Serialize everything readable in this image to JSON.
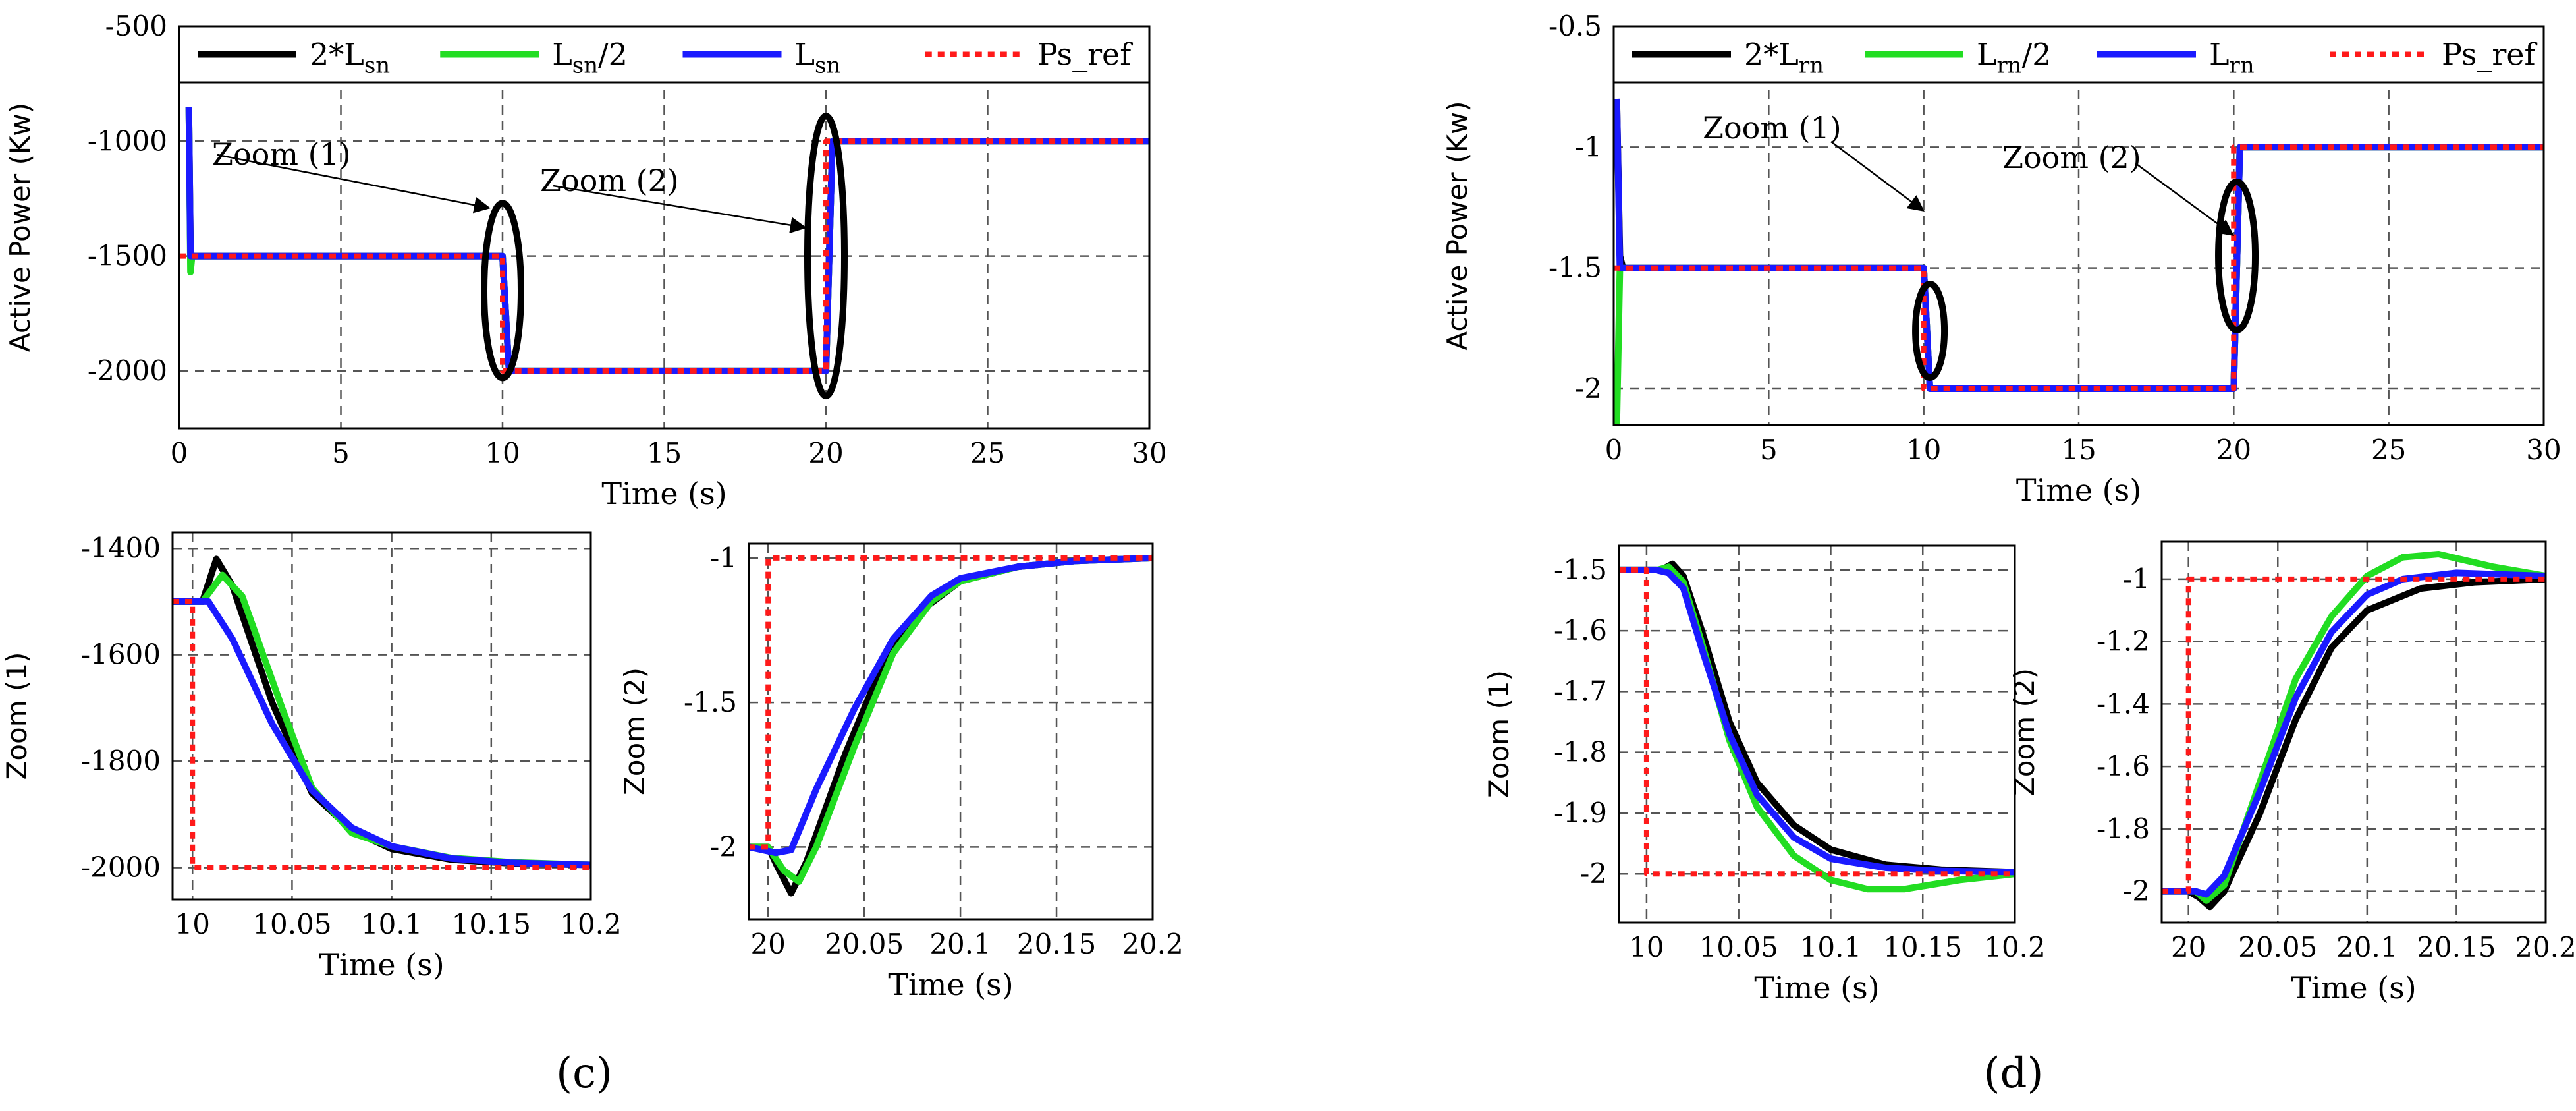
{
  "figure": {
    "panel_c_label": "(c)",
    "panel_d_label": "(d)"
  },
  "colors": {
    "series_2x": "#000000",
    "series_half": "#22dd22",
    "series_nominal": "#1a1aff",
    "reference": "#ff1a1a",
    "grid": "#555555"
  },
  "chart_data": [
    {
      "id": "c_main",
      "type": "line",
      "xlabel": "Time (s)",
      "ylabel": "Active Power (Kw)",
      "xlim": [
        0,
        30
      ],
      "ylim": [
        -2250,
        -500
      ],
      "xticks": [
        0,
        5,
        10,
        15,
        20,
        25,
        30
      ],
      "xtick_labels": [
        "0",
        "5",
        "10",
        "15",
        "20",
        "25",
        "30"
      ],
      "yticks": [
        -500,
        -1000,
        -1500,
        -2000
      ],
      "ytick_labels": [
        "-500",
        "-1000",
        "-1500",
        "-2000"
      ],
      "legend": [
        {
          "base": "2*L",
          "sub": "sn",
          "tail": ""
        },
        {
          "base": "L",
          "sub": "sn",
          "tail": "/2"
        },
        {
          "base": "L",
          "sub": "sn",
          "tail": ""
        },
        {
          "base": "Ps_ref",
          "sub": "",
          "tail": ""
        }
      ],
      "annotations": [
        "Zoom (1)",
        "Zoom (2)"
      ],
      "series": [
        {
          "name": "2*Lsn",
          "x": [
            0.3,
            0.35,
            0.4,
            10,
            10.2,
            20,
            20.2,
            30
          ],
          "y": [
            -850,
            -1480,
            -1500,
            -1500,
            -2000,
            -2000,
            -1000,
            -1000
          ]
        },
        {
          "name": "Lsn/2",
          "x": [
            0.3,
            0.35,
            0.4,
            10,
            10.2,
            20,
            20.2,
            30
          ],
          "y": [
            -850,
            -1570,
            -1500,
            -1500,
            -2000,
            -2000,
            -1000,
            -1000
          ]
        },
        {
          "name": "Lsn",
          "x": [
            0.3,
            0.35,
            0.4,
            10,
            10.2,
            20,
            20.2,
            30
          ],
          "y": [
            -850,
            -1500,
            -1500,
            -1500,
            -2000,
            -2000,
            -1000,
            -1000
          ]
        },
        {
          "name": "Ps_ref",
          "x": [
            0,
            10,
            10,
            20,
            20,
            30
          ],
          "y": [
            -1500,
            -1500,
            -2000,
            -2000,
            -1000,
            -1000
          ]
        }
      ]
    },
    {
      "id": "d_main",
      "type": "line",
      "xlabel": "Time (s)",
      "ylabel": "Active Power (Kw)",
      "xlim": [
        0,
        30
      ],
      "ylim": [
        -2.15,
        -0.5
      ],
      "xticks": [
        0,
        5,
        10,
        15,
        20,
        25,
        30
      ],
      "xtick_labels": [
        "0",
        "5",
        "10",
        "15",
        "20",
        "25",
        "30"
      ],
      "yticks": [
        -0.5,
        -1,
        -1.5,
        -2
      ],
      "ytick_labels": [
        "-0.5",
        "-1",
        "-1.5",
        "-2"
      ],
      "legend": [
        {
          "base": "2*L",
          "sub": "rn",
          "tail": ""
        },
        {
          "base": "L",
          "sub": "rn",
          "tail": "/2"
        },
        {
          "base": "L",
          "sub": "rn",
          "tail": ""
        },
        {
          "base": "Ps_ref",
          "sub": "",
          "tail": ""
        }
      ],
      "annotations": [
        "Zoom (1)",
        "Zoom (2)"
      ],
      "series": [
        {
          "name": "2*Lrn",
          "x": [
            0.1,
            0.2,
            0.3,
            10,
            10.2,
            20,
            20.2,
            30
          ],
          "y": [
            -0.8,
            -1.45,
            -1.5,
            -1.5,
            -2,
            -2,
            -1,
            -1
          ]
        },
        {
          "name": "Lrn/2",
          "x": [
            0.1,
            0.2,
            0.3,
            10,
            10.2,
            20,
            20.2,
            30
          ],
          "y": [
            -2.15,
            -1.5,
            -1.5,
            -1.5,
            -2,
            -2,
            -1,
            -1
          ]
        },
        {
          "name": "Lrn",
          "x": [
            0.1,
            0.2,
            0.3,
            10,
            10.2,
            20,
            20.2,
            30
          ],
          "y": [
            -0.8,
            -1.5,
            -1.5,
            -1.5,
            -2,
            -2,
            -1,
            -1
          ]
        },
        {
          "name": "Ps_ref",
          "x": [
            0,
            10,
            10,
            20,
            20,
            30
          ],
          "y": [
            -1.5,
            -1.5,
            -2,
            -2,
            -1,
            -1
          ]
        }
      ]
    },
    {
      "id": "c_zoom1",
      "type": "line",
      "xlabel": "Time (s)",
      "ylabel": "Zoom (1)",
      "xlim": [
        9.99,
        10.2
      ],
      "ylim": [
        -2060,
        -1370
      ],
      "xticks": [
        10,
        10.05,
        10.1,
        10.15,
        10.2
      ],
      "xtick_labels": [
        "10",
        "10.05",
        "10.1",
        "10.15",
        "10.2"
      ],
      "yticks": [
        -1400,
        -1600,
        -1800,
        -2000
      ],
      "ytick_labels": [
        "-1400",
        "-1600",
        "-1800",
        "-2000"
      ],
      "series": [
        {
          "name": "2*Lsn",
          "x": [
            9.99,
            10.005,
            10.012,
            10.02,
            10.04,
            10.06,
            10.08,
            10.1,
            10.13,
            10.16,
            10.2
          ],
          "y": [
            -1500,
            -1500,
            -1420,
            -1470,
            -1690,
            -1860,
            -1930,
            -1965,
            -1985,
            -1992,
            -1995
          ]
        },
        {
          "name": "Lsn/2",
          "x": [
            9.99,
            10.005,
            10.015,
            10.025,
            10.045,
            10.06,
            10.08,
            10.1,
            10.13,
            10.16,
            10.2
          ],
          "y": [
            -1500,
            -1500,
            -1450,
            -1490,
            -1700,
            -1850,
            -1935,
            -1960,
            -1982,
            -1990,
            -1995
          ]
        },
        {
          "name": "Lsn",
          "x": [
            9.99,
            10.008,
            10.02,
            10.04,
            10.06,
            10.08,
            10.1,
            10.13,
            10.16,
            10.2
          ],
          "y": [
            -1500,
            -1500,
            -1570,
            -1730,
            -1855,
            -1925,
            -1960,
            -1983,
            -1991,
            -1995
          ]
        },
        {
          "name": "Ps_ref",
          "x": [
            9.99,
            10.0,
            10.0,
            10.2
          ],
          "y": [
            -1500,
            -1500,
            -2000,
            -2000
          ]
        }
      ]
    },
    {
      "id": "c_zoom2",
      "type": "line",
      "xlabel": "Time (s)",
      "ylabel": "Zoom (2)",
      "xlim": [
        19.99,
        20.2
      ],
      "ylim": [
        -2.25,
        -0.95
      ],
      "xticks": [
        20,
        20.05,
        20.1,
        20.15,
        20.2
      ],
      "xtick_labels": [
        "20",
        "20.05",
        "20.1",
        "20.15",
        "20.2"
      ],
      "yticks": [
        -1,
        -1.5,
        -2
      ],
      "ytick_labels": [
        "-1",
        "-1.5",
        "-2"
      ],
      "series": [
        {
          "name": "2*Lsn",
          "x": [
            19.99,
            20.0,
            20.005,
            20.012,
            20.02,
            20.04,
            20.06,
            20.08,
            20.1,
            20.13,
            20.16,
            20.2
          ],
          "y": [
            -2,
            -2,
            -2.07,
            -2.16,
            -2.05,
            -1.68,
            -1.36,
            -1.18,
            -1.08,
            -1.03,
            -1.01,
            -1.0
          ]
        },
        {
          "name": "Lsn/2",
          "x": [
            19.99,
            20.0,
            20.008,
            20.016,
            20.025,
            20.045,
            20.065,
            20.085,
            20.1,
            20.13,
            20.16,
            20.2
          ],
          "y": [
            -2,
            -2,
            -2.08,
            -2.12,
            -2.0,
            -1.65,
            -1.33,
            -1.15,
            -1.08,
            -1.03,
            -1.01,
            -1.0
          ]
        },
        {
          "name": "Lsn",
          "x": [
            19.99,
            20.004,
            20.012,
            20.025,
            20.045,
            20.065,
            20.085,
            20.1,
            20.13,
            20.16,
            20.2
          ],
          "y": [
            -2,
            -2.02,
            -2.01,
            -1.8,
            -1.52,
            -1.28,
            -1.13,
            -1.07,
            -1.03,
            -1.01,
            -1.0
          ]
        },
        {
          "name": "Ps_ref",
          "x": [
            19.99,
            20.0,
            20.0,
            20.2
          ],
          "y": [
            -2,
            -2,
            -1,
            -1
          ]
        }
      ]
    },
    {
      "id": "d_zoom1",
      "type": "line",
      "xlabel": "Time (s)",
      "ylabel": "Zoom (1)",
      "xlim": [
        9.985,
        10.2
      ],
      "ylim": [
        -2.08,
        -1.46
      ],
      "xticks": [
        10,
        10.05,
        10.1,
        10.15,
        10.2
      ],
      "xtick_labels": [
        "10",
        "10.05",
        "10.1",
        "10.15",
        "10.2"
      ],
      "yticks": [
        -1.5,
        -1.6,
        -1.7,
        -1.8,
        -1.9,
        -2
      ],
      "ytick_labels": [
        "-1.5",
        "-1.6",
        "-1.7",
        "-1.8",
        "-1.9",
        "-2"
      ],
      "series": [
        {
          "name": "2*Lrn",
          "x": [
            9.985,
            10.008,
            10.014,
            10.02,
            10.03,
            10.045,
            10.06,
            10.08,
            10.1,
            10.13,
            10.16,
            10.2
          ],
          "y": [
            -1.5,
            -1.5,
            -1.49,
            -1.51,
            -1.6,
            -1.75,
            -1.85,
            -1.92,
            -1.96,
            -1.985,
            -1.993,
            -1.997
          ]
        },
        {
          "name": "Lrn/2",
          "x": [
            9.985,
            10.006,
            10.012,
            10.02,
            10.03,
            10.045,
            10.06,
            10.08,
            10.1,
            10.12,
            10.14,
            10.17,
            10.2
          ],
          "y": [
            -1.5,
            -1.5,
            -1.495,
            -1.52,
            -1.62,
            -1.78,
            -1.89,
            -1.97,
            -2.01,
            -2.025,
            -2.025,
            -2.01,
            -2.0
          ]
        },
        {
          "name": "Lrn",
          "x": [
            9.985,
            10.005,
            10.012,
            10.02,
            10.03,
            10.045,
            10.06,
            10.08,
            10.1,
            10.13,
            10.16,
            10.2
          ],
          "y": [
            -1.5,
            -1.5,
            -1.505,
            -1.53,
            -1.63,
            -1.77,
            -1.87,
            -1.94,
            -1.975,
            -1.99,
            -1.995,
            -1.997
          ]
        },
        {
          "name": "Ps_ref",
          "x": [
            9.985,
            10.0,
            10.0,
            10.2
          ],
          "y": [
            -1.5,
            -1.5,
            -2,
            -2
          ]
        }
      ]
    },
    {
      "id": "d_zoom2",
      "type": "line",
      "xlabel": "Time (s)",
      "ylabel": "Zoom (2)",
      "xlim": [
        19.985,
        20.2
      ],
      "ylim": [
        -2.1,
        -0.88
      ],
      "xticks": [
        20,
        20.05,
        20.1,
        20.15,
        20.2
      ],
      "xtick_labels": [
        "20",
        "20.05",
        "20.1",
        "20.15",
        "20.2"
      ],
      "yticks": [
        -1,
        -1.2,
        -1.4,
        -1.6,
        -1.8,
        -2
      ],
      "ytick_labels": [
        "-1",
        "-1.2",
        "-1.4",
        "-1.6",
        "-1.8",
        "-2"
      ],
      "series": [
        {
          "name": "2*Lrn",
          "x": [
            19.985,
            20.0,
            20.006,
            20.012,
            20.02,
            20.04,
            20.06,
            20.08,
            20.1,
            20.13,
            20.16,
            20.2
          ],
          "y": [
            -2,
            -2,
            -2.02,
            -2.05,
            -2.0,
            -1.75,
            -1.45,
            -1.22,
            -1.1,
            -1.03,
            -1.01,
            -1.0
          ]
        },
        {
          "name": "Lrn/2",
          "x": [
            19.985,
            20.004,
            20.01,
            20.02,
            20.04,
            20.06,
            20.08,
            20.1,
            20.12,
            20.14,
            20.17,
            20.2
          ],
          "y": [
            -2,
            -2,
            -2.03,
            -1.98,
            -1.65,
            -1.32,
            -1.12,
            -0.99,
            -0.93,
            -0.92,
            -0.96,
            -0.99
          ]
        },
        {
          "name": "Lrn",
          "x": [
            19.985,
            20.004,
            20.01,
            20.02,
            20.04,
            20.06,
            20.08,
            20.1,
            20.12,
            20.15,
            20.2
          ],
          "y": [
            -2,
            -2,
            -2.01,
            -1.95,
            -1.68,
            -1.38,
            -1.17,
            -1.05,
            -1.0,
            -0.98,
            -0.99
          ]
        },
        {
          "name": "Ps_ref",
          "x": [
            19.985,
            20.0,
            20.0,
            20.2
          ],
          "y": [
            -2,
            -2,
            -1,
            -1
          ]
        }
      ]
    }
  ]
}
